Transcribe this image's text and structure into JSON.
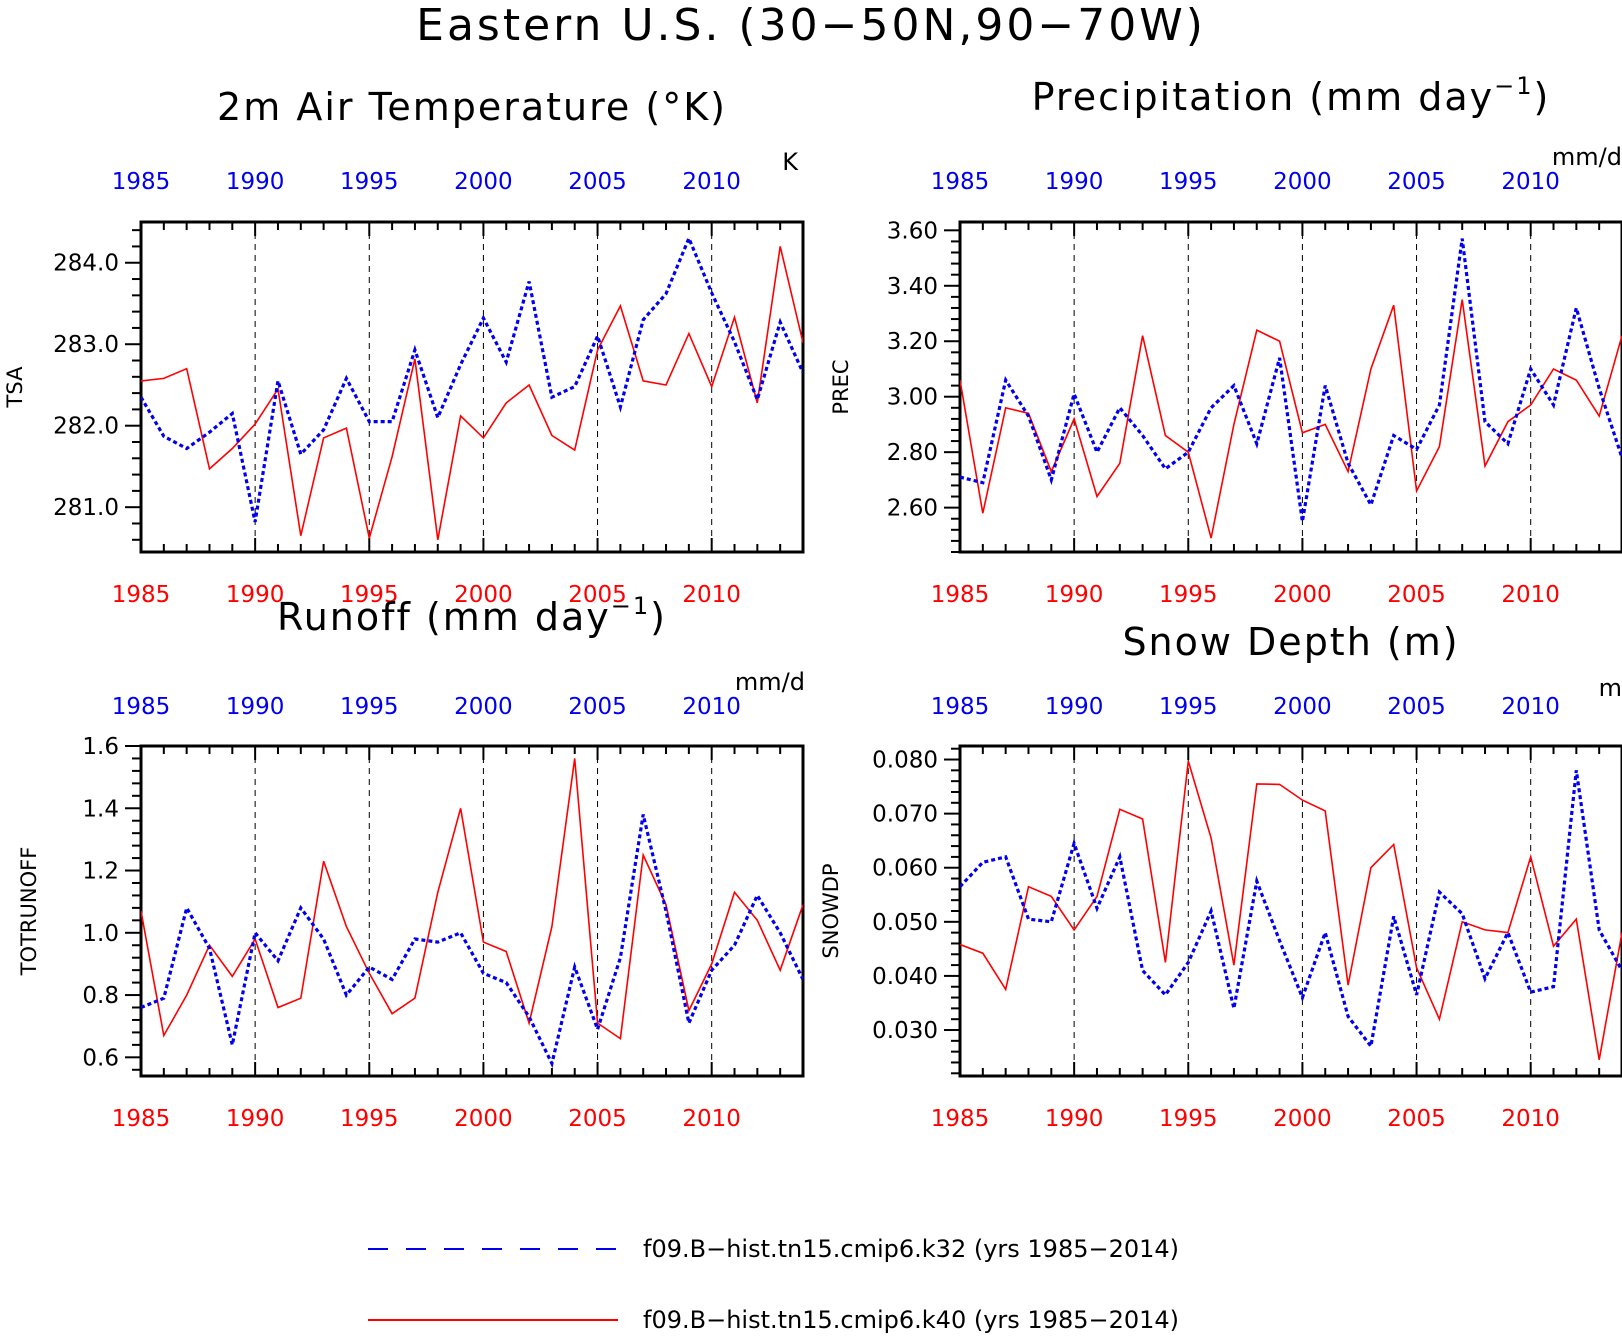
{
  "figure": {
    "title": "Eastern U.S. (30−50N,90−70W)",
    "colors": {
      "k32": "#0000ee",
      "k40": "#ff0000",
      "axis": "#000000"
    }
  },
  "legend": [
    {
      "label": "f09.B−hist.tn15.cmip6.k32 (yrs 1985−2014)",
      "color": "#0000ee",
      "style": "dashed"
    },
    {
      "label": "f09.B−hist.tn15.cmip6.k40 (yrs 1985−2014)",
      "color": "#ff0000",
      "style": "solid"
    }
  ],
  "chart_data": [
    {
      "type": "line",
      "title": "2m Air Temperature (°K)",
      "ylabel": "TSA",
      "units": "K",
      "ylim": [
        280.45,
        284.5
      ],
      "yticks": [
        281.0,
        282.0,
        283.0,
        284.0
      ],
      "ytick_labels": [
        "281.0",
        "282.0",
        "283.0",
        "284.0"
      ],
      "xlim": [
        1985,
        2014
      ],
      "xticks": [
        1985,
        1990,
        1995,
        2000,
        2005,
        2010
      ],
      "xtick_labels": [
        "1985",
        "1990",
        "1995",
        "2000",
        "2005",
        "2010"
      ],
      "series": [
        {
          "name": "f09.B−hist.tn15.cmip6.k32",
          "x": [
            1985,
            1986,
            1987,
            1988,
            1989,
            1990,
            1991,
            1992,
            1993,
            1994,
            1995,
            1996,
            1997,
            1998,
            1999,
            2000,
            2001,
            2002,
            2003,
            2004,
            2005,
            2006,
            2007,
            2008,
            2009,
            2010,
            2011,
            2012,
            2013,
            2014
          ],
          "values": [
            282.35,
            281.87,
            281.72,
            281.92,
            282.15,
            280.82,
            282.55,
            281.65,
            281.95,
            282.58,
            282.05,
            282.05,
            282.93,
            282.1,
            282.75,
            283.32,
            282.78,
            283.77,
            282.35,
            282.48,
            283.1,
            282.23,
            283.3,
            283.62,
            284.3,
            283.63,
            283.03,
            282.32,
            283.27,
            282.65
          ]
        },
        {
          "name": "f09.B−hist.tn15.cmip6.k40",
          "x": [
            1985,
            1986,
            1987,
            1988,
            1989,
            1990,
            1991,
            1992,
            1993,
            1994,
            1995,
            1996,
            1997,
            1998,
            1999,
            2000,
            2001,
            2002,
            2003,
            2004,
            2005,
            2006,
            2007,
            2008,
            2009,
            2010,
            2011,
            2012,
            2013,
            2014
          ],
          "values": [
            282.55,
            282.58,
            282.7,
            281.47,
            281.72,
            282.02,
            282.45,
            280.65,
            281.85,
            281.97,
            280.62,
            281.62,
            282.82,
            280.6,
            282.12,
            281.85,
            282.28,
            282.5,
            281.88,
            281.7,
            282.93,
            283.47,
            282.55,
            282.5,
            283.13,
            282.48,
            283.33,
            282.28,
            284.2,
            283.02
          ]
        }
      ]
    },
    {
      "type": "line",
      "title": "Precipitation (mm day⁻¹)",
      "title_main": "Precipitation (mm day",
      "title_sup": "−1",
      "title_end": ")",
      "ylabel": "PREC",
      "units": "mm/d",
      "ylim": [
        2.44,
        3.63
      ],
      "yticks": [
        2.6,
        2.8,
        3.0,
        3.2,
        3.4,
        3.6
      ],
      "ytick_labels": [
        "2.60",
        "2.80",
        "3.00",
        "3.20",
        "3.40",
        "3.60"
      ],
      "xlim": [
        1985,
        2014
      ],
      "xticks": [
        1985,
        1990,
        1995,
        2000,
        2005,
        2010
      ],
      "xtick_labels": [
        "1985",
        "1990",
        "1995",
        "2000",
        "2005",
        "2010"
      ],
      "series": [
        {
          "name": "f09.B−hist.tn15.cmip6.k32",
          "x": [
            1985,
            1986,
            1987,
            1988,
            1989,
            1990,
            1991,
            1992,
            1993,
            1994,
            1995,
            1996,
            1997,
            1998,
            1999,
            2000,
            2001,
            2002,
            2003,
            2004,
            2005,
            2006,
            2007,
            2008,
            2009,
            2010,
            2011,
            2012,
            2013,
            2014
          ],
          "values": [
            2.71,
            2.69,
            3.06,
            2.93,
            2.7,
            3.01,
            2.8,
            2.96,
            2.86,
            2.74,
            2.8,
            2.96,
            3.04,
            2.83,
            3.14,
            2.55,
            3.04,
            2.76,
            2.61,
            2.86,
            2.81,
            2.97,
            3.57,
            2.91,
            2.83,
            3.1,
            2.97,
            3.32,
            3.03,
            2.78
          ]
        },
        {
          "name": "f09.B−hist.tn15.cmip6.k40",
          "x": [
            1985,
            1986,
            1987,
            1988,
            1989,
            1990,
            1991,
            1992,
            1993,
            1994,
            1995,
            1996,
            1997,
            1998,
            1999,
            2000,
            2001,
            2002,
            2003,
            2004,
            2005,
            2006,
            2007,
            2008,
            2009,
            2010,
            2011,
            2012,
            2013,
            2014
          ],
          "values": [
            3.06,
            2.58,
            2.96,
            2.94,
            2.73,
            2.92,
            2.64,
            2.76,
            3.22,
            2.86,
            2.8,
            2.49,
            2.9,
            3.24,
            3.2,
            2.87,
            2.9,
            2.73,
            3.1,
            3.33,
            2.66,
            2.82,
            3.35,
            2.75,
            2.91,
            2.97,
            3.1,
            3.06,
            2.93,
            3.22
          ]
        }
      ]
    },
    {
      "type": "line",
      "title": "Runoff (mm day⁻¹)",
      "title_main": "Runoff (mm day",
      "title_sup": "−1",
      "title_end": ")",
      "ylabel": "TOTRUNOFF",
      "units": "mm/d",
      "ylim": [
        0.54,
        1.6
      ],
      "yticks": [
        0.6,
        0.8,
        1.0,
        1.2,
        1.4,
        1.6
      ],
      "ytick_labels": [
        "0.6",
        "0.8",
        "1.0",
        "1.2",
        "1.4",
        "1.6"
      ],
      "xlim": [
        1985,
        2014
      ],
      "xticks": [
        1985,
        1990,
        1995,
        2000,
        2005,
        2010
      ],
      "xtick_labels": [
        "1985",
        "1990",
        "1995",
        "2000",
        "2005",
        "2010"
      ],
      "series": [
        {
          "name": "f09.B−hist.tn15.cmip6.k32",
          "x": [
            1985,
            1986,
            1987,
            1988,
            1989,
            1990,
            1991,
            1992,
            1993,
            1994,
            1995,
            1996,
            1997,
            1998,
            1999,
            2000,
            2001,
            2002,
            2003,
            2004,
            2005,
            2006,
            2007,
            2008,
            2009,
            2010,
            2011,
            2012,
            2013,
            2014
          ],
          "values": [
            0.76,
            0.79,
            1.08,
            0.95,
            0.64,
            1.0,
            0.91,
            1.08,
            0.98,
            0.8,
            0.89,
            0.85,
            0.98,
            0.97,
            1.0,
            0.87,
            0.84,
            0.73,
            0.58,
            0.89,
            0.69,
            0.92,
            1.38,
            1.07,
            0.71,
            0.88,
            0.96,
            1.12,
            1.0,
            0.85
          ]
        },
        {
          "name": "f09.B−hist.tn15.cmip6.k40",
          "x": [
            1985,
            1986,
            1987,
            1988,
            1989,
            1990,
            1991,
            1992,
            1993,
            1994,
            1995,
            1996,
            1997,
            1998,
            1999,
            2000,
            2001,
            2002,
            2003,
            2004,
            2005,
            2006,
            2007,
            2008,
            2009,
            2010,
            2011,
            2012,
            2013,
            2014
          ],
          "values": [
            1.07,
            0.67,
            0.8,
            0.96,
            0.86,
            0.98,
            0.76,
            0.79,
            1.23,
            1.02,
            0.87,
            0.74,
            0.79,
            1.13,
            1.4,
            0.97,
            0.94,
            0.71,
            1.02,
            1.56,
            0.71,
            0.66,
            1.25,
            1.09,
            0.75,
            0.9,
            1.13,
            1.04,
            0.88,
            1.09
          ]
        }
      ]
    },
    {
      "type": "line",
      "title": "Snow Depth (m)",
      "ylabel": "SNOWDP",
      "units": "m",
      "ylim": [
        0.0215,
        0.0825
      ],
      "yticks": [
        0.03,
        0.04,
        0.05,
        0.06,
        0.07,
        0.08
      ],
      "ytick_labels": [
        "0.030",
        "0.040",
        "0.050",
        "0.060",
        "0.070",
        "0.080"
      ],
      "xlim": [
        1985,
        2014
      ],
      "xticks": [
        1985,
        1990,
        1995,
        2000,
        2005,
        2010
      ],
      "xtick_labels": [
        "1985",
        "1990",
        "1995",
        "2000",
        "2005",
        "2010"
      ],
      "series": [
        {
          "name": "f09.B−hist.tn15.cmip6.k32",
          "x": [
            1985,
            1986,
            1987,
            1988,
            1989,
            1990,
            1991,
            1992,
            1993,
            1994,
            1995,
            1996,
            1997,
            1998,
            1999,
            2000,
            2001,
            2002,
            2003,
            2004,
            2005,
            2006,
            2007,
            2008,
            2009,
            2010,
            2011,
            2012,
            2013,
            2014
          ],
          "values": [
            0.0565,
            0.061,
            0.062,
            0.0505,
            0.05,
            0.0645,
            0.0525,
            0.062,
            0.041,
            0.0365,
            0.0425,
            0.052,
            0.034,
            0.0575,
            0.0465,
            0.036,
            0.048,
            0.0325,
            0.027,
            0.051,
            0.0365,
            0.0555,
            0.0515,
            0.0395,
            0.048,
            0.037,
            0.038,
            0.078,
            0.0485,
            0.041
          ]
        },
        {
          "name": "f09.B−hist.tn15.cmip6.k40",
          "x": [
            1985,
            1986,
            1987,
            1988,
            1989,
            1990,
            1991,
            1992,
            1993,
            1994,
            1995,
            1996,
            1997,
            1998,
            1999,
            2000,
            2001,
            2002,
            2003,
            2004,
            2005,
            2006,
            2007,
            2008,
            2009,
            2010,
            2011,
            2012,
            2013,
            2014
          ],
          "values": [
            0.0458,
            0.0442,
            0.0375,
            0.0565,
            0.0547,
            0.0485,
            0.0547,
            0.0708,
            0.069,
            0.0425,
            0.0797,
            0.0655,
            0.042,
            0.0755,
            0.0754,
            0.0725,
            0.0705,
            0.0383,
            0.06,
            0.0643,
            0.0415,
            0.032,
            0.05,
            0.0485,
            0.048,
            0.062,
            0.0455,
            0.0505,
            0.0245,
            0.048
          ]
        }
      ]
    }
  ]
}
